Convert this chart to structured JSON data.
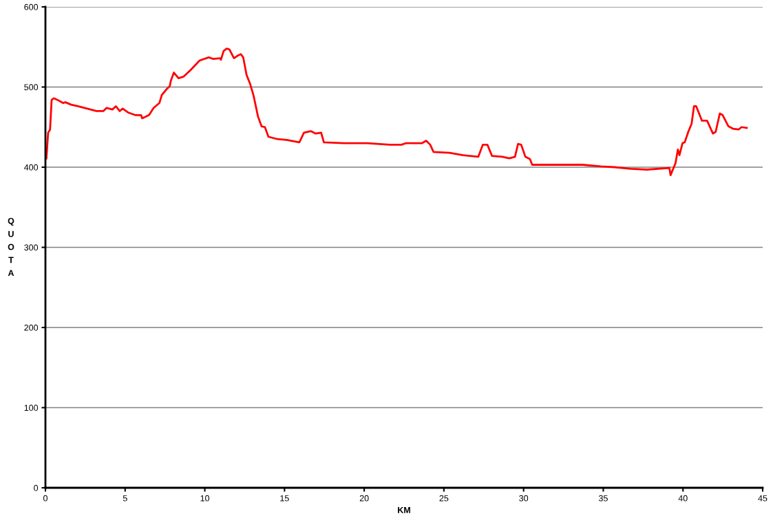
{
  "chart_data": {
    "type": "line",
    "xlabel": "KM",
    "ylabel": "QUOTA",
    "xlim": [
      0,
      45
    ],
    "xticks": [
      0,
      5,
      10,
      15,
      20,
      25,
      30,
      35,
      40,
      45
    ],
    "ylim": [
      0,
      600
    ],
    "yticks": [
      0,
      100,
      200,
      300,
      400,
      500,
      600
    ],
    "grid": "y",
    "marker": "none",
    "line_style": "solid",
    "series": [
      {
        "color": "#ff0000",
        "x": [
          0.06,
          0.17,
          0.29,
          0.39,
          0.53,
          0.75,
          1.11,
          1.25,
          1.61,
          2.04,
          2.62,
          3.2,
          3.63,
          3.84,
          4.2,
          4.42,
          4.66,
          4.85,
          5.21,
          5.64,
          6.0,
          6.07,
          6.5,
          6.79,
          7.15,
          7.3,
          7.59,
          7.8,
          7.87,
          8.06,
          8.35,
          8.67,
          9.1,
          9.67,
          10.25,
          10.54,
          10.97,
          11.01,
          11.18,
          11.37,
          11.54,
          11.83,
          12.05,
          12.26,
          12.41,
          12.62,
          12.84,
          13.05,
          13.34,
          13.56,
          13.77,
          13.99,
          14.56,
          15.14,
          15.93,
          16.22,
          16.65,
          16.94,
          17.3,
          17.47,
          18.74,
          20.18,
          21.62,
          22.34,
          22.63,
          23.63,
          23.89,
          24.14,
          24.35,
          25.36,
          26.22,
          27.16,
          27.44,
          27.73,
          28.02,
          28.67,
          29.1,
          29.46,
          29.65,
          29.85,
          30.11,
          30.4,
          30.54,
          31.41,
          32.7,
          33.71,
          34.86,
          35.72,
          36.73,
          37.74,
          39.15,
          39.22,
          39.53,
          39.68,
          39.78,
          39.97,
          40.11,
          40.33,
          40.54,
          40.69,
          40.83,
          41.19,
          41.51,
          41.88,
          42.05,
          42.31,
          42.49,
          42.85,
          43.13,
          43.49,
          43.67,
          44.0
        ],
        "values": [
          411,
          443,
          447,
          484,
          486,
          484,
          480,
          481,
          478,
          476,
          473,
          470,
          470,
          474,
          472,
          476,
          470,
          473,
          468,
          465,
          465,
          461,
          465,
          474,
          480,
          490,
          497,
          501,
          508,
          518,
          511,
          513,
          521,
          533,
          537,
          535,
          536,
          534,
          545,
          548,
          547,
          536,
          539,
          541,
          537,
          515,
          504,
          490,
          463,
          451,
          450,
          438,
          435,
          434,
          431,
          443,
          445,
          442,
          443,
          431,
          430,
          430,
          428,
          428,
          430,
          430,
          433,
          428,
          419,
          418,
          415,
          413,
          428,
          428,
          414,
          413,
          411,
          413,
          429,
          428,
          413,
          410,
          403,
          403,
          403,
          403,
          401,
          400,
          398,
          397,
          399,
          390,
          405,
          422,
          415,
          430,
          431,
          444,
          454,
          476,
          476,
          458,
          458,
          442,
          444,
          467,
          465,
          451,
          448,
          447,
          450,
          449
        ]
      }
    ]
  }
}
